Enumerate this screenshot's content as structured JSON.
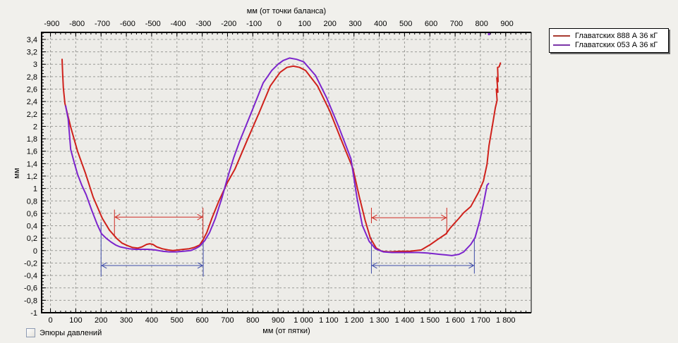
{
  "legend": {
    "items": [
      {
        "label": "Главатских 888 А 36 кГ",
        "color": "#a83a30"
      },
      {
        "label": "Главатских 053 А 36 кГ",
        "color": "#7b35a8"
      }
    ]
  },
  "controls": {
    "pressure_checkbox_label": "Эпюры давлений",
    "pressure_checkbox_checked": false
  },
  "colors": {
    "background": "#f1f0ec",
    "plot_background": "#edece8",
    "gridline": "#9b9b97",
    "axis": "#000000",
    "red_series": "#cf211b",
    "violet_series": "#7c25cc",
    "blue_marker": "#3d4ba8",
    "red_marker": "#cf2a22"
  },
  "chart_data": {
    "type": "line",
    "title": "",
    "x_axis_bottom": {
      "label": "мм (от пятки)",
      "tick_values": [
        0,
        100,
        200,
        300,
        400,
        500,
        600,
        700,
        800,
        900,
        1000,
        1100,
        1200,
        1300,
        1400,
        1500,
        1600,
        1700,
        1800
      ],
      "tick_labels": [
        "0",
        "100",
        "200",
        "300",
        "400",
        "500",
        "600",
        "700",
        "800",
        "900",
        "1 000",
        "1 100",
        "1 200",
        "1 300",
        "1 400",
        "1 500",
        "1 600",
        "1 700",
        "1 800"
      ],
      "minor_step": 20,
      "range_mm": [
        -35,
        1901
      ]
    },
    "x_axis_top": {
      "label": "мм (от точки баланса)",
      "balance_offset_mm": 905,
      "tick_values": [
        -900,
        -800,
        -700,
        -600,
        -500,
        -400,
        -300,
        -200,
        -100,
        0,
        100,
        200,
        300,
        400,
        500,
        600,
        700,
        800,
        900
      ],
      "tick_labels": [
        "-900",
        "-800",
        "-700",
        "-600",
        "-500",
        "-400",
        "-300",
        "-200",
        "-100",
        "0",
        "100",
        "200",
        "300",
        "400",
        "500",
        "600",
        "700",
        "800",
        "900"
      ]
    },
    "y_axis": {
      "label": "мм",
      "tick_values": [
        3.4,
        3.2,
        3,
        2.8,
        2.6,
        2.4,
        2.2,
        2,
        1.8,
        1.6,
        1.4,
        1.2,
        1,
        0.8,
        0.6,
        0.4,
        0.2,
        0,
        -0.2,
        -0.4,
        -0.6,
        -0.8,
        -1
      ],
      "tick_labels": [
        "3,4",
        "3,2",
        "3",
        "2,8",
        "2,6",
        "2,4",
        "2,2",
        "2",
        "1,8",
        "1,6",
        "1,4",
        "1,2",
        "1",
        "0,8",
        "0,6",
        "0,4",
        "0,2",
        "0",
        "-0,2",
        "-0,4",
        "-0,6",
        "-0,8",
        "-1"
      ],
      "minor_step": 0.05,
      "range": [
        -1,
        3.513
      ]
    },
    "grid": {
      "dashed": true
    },
    "legend_position": "top-right",
    "series": [
      {
        "name": "Главатских 888 А 36 кГ",
        "color": "#cf211b",
        "points": [
          [
            46,
            3.08
          ],
          [
            48,
            2.85
          ],
          [
            51,
            2.62
          ],
          [
            57,
            2.37
          ],
          [
            66,
            2.22
          ],
          [
            80,
            1.99
          ],
          [
            107,
            1.6
          ],
          [
            138,
            1.25
          ],
          [
            169,
            0.86
          ],
          [
            205,
            0.52
          ],
          [
            233,
            0.33
          ],
          [
            261,
            0.2
          ],
          [
            283,
            0.12
          ],
          [
            305,
            0.08
          ],
          [
            325,
            0.05
          ],
          [
            345,
            0.04
          ],
          [
            362,
            0.06
          ],
          [
            380,
            0.1
          ],
          [
            392,
            0.11
          ],
          [
            405,
            0.1
          ],
          [
            420,
            0.06
          ],
          [
            442,
            0.03
          ],
          [
            465,
            0.01
          ],
          [
            484,
            0.0
          ],
          [
            505,
            0.01
          ],
          [
            526,
            0.02
          ],
          [
            548,
            0.03
          ],
          [
            568,
            0.05
          ],
          [
            590,
            0.09
          ],
          [
            604,
            0.18
          ],
          [
            618,
            0.29
          ],
          [
            638,
            0.52
          ],
          [
            666,
            0.8
          ],
          [
            700,
            1.1
          ],
          [
            729,
            1.31
          ],
          [
            777,
            1.77
          ],
          [
            825,
            2.22
          ],
          [
            869,
            2.65
          ],
          [
            908,
            2.87
          ],
          [
            935,
            2.95
          ],
          [
            960,
            2.97
          ],
          [
            985,
            2.95
          ],
          [
            1009,
            2.9
          ],
          [
            1056,
            2.65
          ],
          [
            1104,
            2.25
          ],
          [
            1148,
            1.8
          ],
          [
            1196,
            1.32
          ],
          [
            1222,
            0.85
          ],
          [
            1244,
            0.49
          ],
          [
            1265,
            0.2
          ],
          [
            1288,
            0.04
          ],
          [
            1310,
            -0.01
          ],
          [
            1340,
            -0.02
          ],
          [
            1383,
            -0.01
          ],
          [
            1420,
            -0.01
          ],
          [
            1466,
            0.01
          ],
          [
            1503,
            0.1
          ],
          [
            1531,
            0.18
          ],
          [
            1564,
            0.27
          ],
          [
            1580,
            0.36
          ],
          [
            1595,
            0.43
          ],
          [
            1615,
            0.52
          ],
          [
            1634,
            0.61
          ],
          [
            1662,
            0.71
          ],
          [
            1693,
            0.94
          ],
          [
            1712,
            1.12
          ],
          [
            1726,
            1.39
          ],
          [
            1734,
            1.69
          ],
          [
            1748,
            2.03
          ],
          [
            1759,
            2.3
          ],
          [
            1766,
            2.42
          ],
          [
            1763,
            2.6
          ],
          [
            1769,
            2.55
          ],
          [
            1765,
            2.78
          ],
          [
            1770,
            2.72
          ],
          [
            1768,
            2.95
          ],
          [
            1774,
            2.96
          ],
          [
            1779,
            3.02
          ]
        ]
      },
      {
        "name": "Главатских 053 А 36 кГ",
        "color": "#7c25cc",
        "offscale_point_mm": 1734,
        "points": [
          [
            60,
            2.33
          ],
          [
            64,
            2.24
          ],
          [
            70,
            2.12
          ],
          [
            74,
            1.92
          ],
          [
            80,
            1.63
          ],
          [
            93,
            1.43
          ],
          [
            107,
            1.23
          ],
          [
            124,
            1.05
          ],
          [
            141,
            0.9
          ],
          [
            163,
            0.65
          ],
          [
            186,
            0.41
          ],
          [
            202,
            0.27
          ],
          [
            220,
            0.2
          ],
          [
            239,
            0.14
          ],
          [
            258,
            0.09
          ],
          [
            275,
            0.06
          ],
          [
            311,
            0.03
          ],
          [
            335,
            0.02
          ],
          [
            359,
            0.02
          ],
          [
            385,
            0.02
          ],
          [
            414,
            0.01
          ],
          [
            442,
            -0.01
          ],
          [
            470,
            -0.02
          ],
          [
            498,
            -0.02
          ],
          [
            526,
            -0.01
          ],
          [
            554,
            0.0
          ],
          [
            572,
            0.03
          ],
          [
            590,
            0.07
          ],
          [
            610,
            0.16
          ],
          [
            629,
            0.29
          ],
          [
            652,
            0.52
          ],
          [
            678,
            0.85
          ],
          [
            702,
            1.2
          ],
          [
            725,
            1.5
          ],
          [
            749,
            1.77
          ],
          [
            797,
            2.25
          ],
          [
            841,
            2.7
          ],
          [
            875,
            2.9
          ],
          [
            900,
            3.0
          ],
          [
            920,
            3.06
          ],
          [
            945,
            3.1
          ],
          [
            973,
            3.08
          ],
          [
            1001,
            3.04
          ],
          [
            1048,
            2.82
          ],
          [
            1093,
            2.45
          ],
          [
            1140,
            1.99
          ],
          [
            1188,
            1.48
          ],
          [
            1212,
            0.85
          ],
          [
            1233,
            0.41
          ],
          [
            1260,
            0.15
          ],
          [
            1285,
            0.03
          ],
          [
            1316,
            -0.02
          ],
          [
            1350,
            -0.03
          ],
          [
            1383,
            -0.03
          ],
          [
            1420,
            -0.03
          ],
          [
            1455,
            -0.03
          ],
          [
            1490,
            -0.04
          ],
          [
            1539,
            -0.06
          ],
          [
            1565,
            -0.07
          ],
          [
            1587,
            -0.08
          ],
          [
            1615,
            -0.06
          ],
          [
            1634,
            -0.02
          ],
          [
            1662,
            0.1
          ],
          [
            1679,
            0.21
          ],
          [
            1698,
            0.49
          ],
          [
            1712,
            0.75
          ],
          [
            1726,
            1.05
          ],
          [
            1732,
            1.08
          ]
        ]
      }
    ],
    "contact_markers": [
      {
        "name": "red-left-zone",
        "color": "#cf2a22",
        "arrow_v": 0.54,
        "x1_mm": 253,
        "x2_mm": 603,
        "ticks": [
          {
            "x_mm": 253,
            "v1": 0.66,
            "v2": 0.25
          },
          {
            "x_mm": 603,
            "v1": 0.69,
            "v2": 0.21
          }
        ]
      },
      {
        "name": "blue-left-zone",
        "color": "#3d4ba8",
        "arrow_v": -0.24,
        "x1_mm": 200,
        "x2_mm": 604,
        "ticks": [
          {
            "x_mm": 200,
            "v1": 0.46,
            "v2": -0.42
          },
          {
            "x_mm": 604,
            "v1": 0.21,
            "v2": -0.42
          }
        ]
      },
      {
        "name": "red-right-zone",
        "color": "#cf2a22",
        "arrow_v": 0.53,
        "x1_mm": 1269,
        "x2_mm": 1567,
        "ticks": [
          {
            "x_mm": 1269,
            "v1": 0.69,
            "v2": 0.44
          },
          {
            "x_mm": 1567,
            "v1": 0.69,
            "v2": 0.26
          }
        ]
      },
      {
        "name": "blue-right-zone",
        "color": "#3d4ba8",
        "arrow_v": -0.24,
        "x1_mm": 1269,
        "x2_mm": 1676,
        "ticks": [
          {
            "x_mm": 1269,
            "v1": 0.21,
            "v2": -0.37
          },
          {
            "x_mm": 1676,
            "v1": 0.21,
            "v2": -0.37
          }
        ]
      }
    ]
  }
}
